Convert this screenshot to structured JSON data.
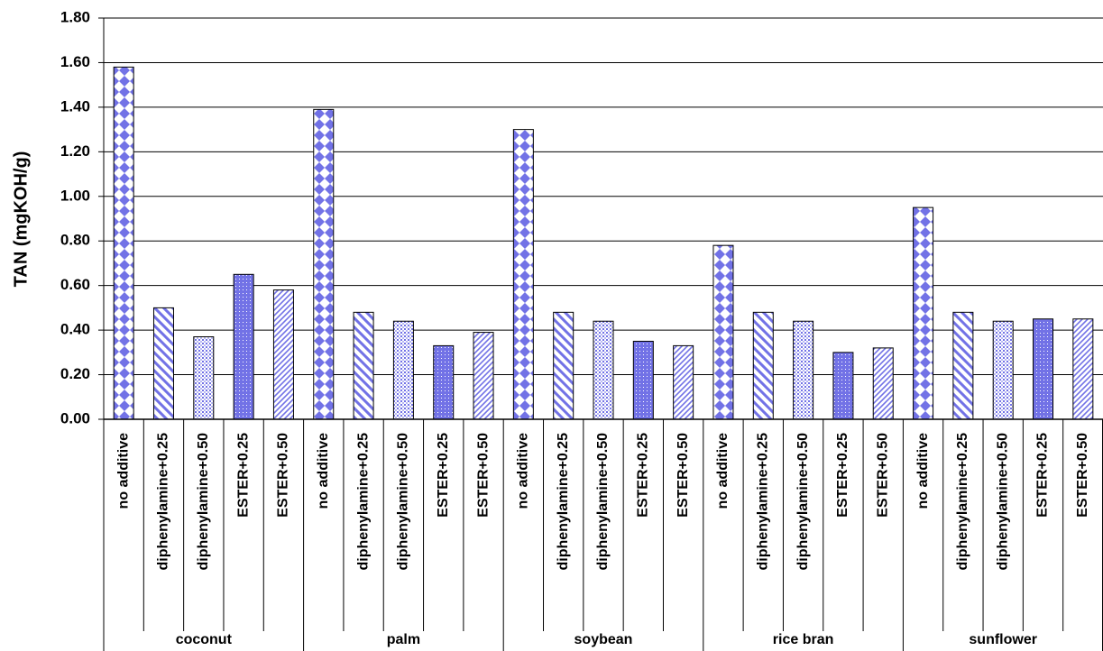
{
  "chart_data": {
    "type": "bar",
    "y_label": "TAN (mgKOH/g)",
    "color": "#7272e6",
    "ylim": [
      0,
      1.8
    ],
    "yticks": [
      {
        "value": 0,
        "label": "0.00"
      },
      {
        "value": 0.2,
        "label": "0.20"
      },
      {
        "value": 0.4,
        "label": "0.40"
      },
      {
        "value": 0.6,
        "label": "0.60"
      },
      {
        "value": 0.8,
        "label": "0.80"
      },
      {
        "value": 1,
        "label": "1.00"
      },
      {
        "value": 1.2,
        "label": "1.20"
      },
      {
        "value": 1.4,
        "label": "1.40"
      },
      {
        "value": 1.6,
        "label": "1.60"
      },
      {
        "value": 1.8,
        "label": "1.80"
      }
    ],
    "grid": true,
    "groups": [
      {
        "name": "coconut",
        "categories": [
          "no additive",
          "diphenylamine+0.25",
          "diphenylamine+0.50",
          "ESTER+0.25",
          "ESTER+0.50"
        ],
        "values": [
          1.58,
          0.5,
          0.37,
          0.65,
          0.58
        ]
      },
      {
        "name": "palm",
        "categories": [
          "no additive",
          "diphenylamine+0.25",
          "diphenylamine+0.50",
          "ESTER+0.25",
          "ESTER+0.50"
        ],
        "values": [
          1.39,
          0.48,
          0.44,
          0.33,
          0.39
        ]
      },
      {
        "name": "soybean",
        "categories": [
          "no additive",
          "diphenylamine+0.25",
          "diphenylamine+0.50",
          "ESTER+0.25",
          "ESTER+0.50"
        ],
        "values": [
          1.3,
          0.48,
          0.44,
          0.35,
          0.33
        ]
      },
      {
        "name": "rice bran",
        "categories": [
          "no additive",
          "diphenylamine+0.25",
          "diphenylamine+0.50",
          "ESTER+0.25",
          "ESTER+0.50"
        ],
        "values": [
          0.78,
          0.48,
          0.44,
          0.3,
          0.32
        ]
      },
      {
        "name": "sunflower",
        "categories": [
          "no additive",
          "diphenylamine+0.25",
          "diphenylamine+0.50",
          "ESTER+0.25",
          "ESTER+0.50"
        ],
        "values": [
          0.95,
          0.48,
          0.44,
          0.45,
          0.45
        ]
      }
    ]
  }
}
